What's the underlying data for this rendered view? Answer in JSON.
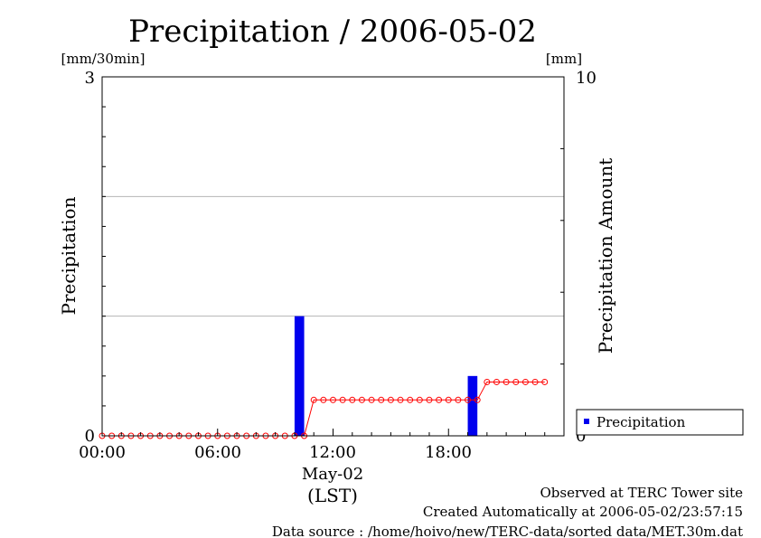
{
  "chart_data": {
    "type": "bar",
    "title": "Precipitation / 2006-05-02",
    "ylabel": "Precipitation",
    "y2label": "Precipitation Amount",
    "yunit": "[mm/30min]",
    "y2unit": "[mm]",
    "ylim": [
      0,
      3
    ],
    "y2lim": [
      0,
      10
    ],
    "y_ticks": [
      "0",
      "3"
    ],
    "y2_ticks": [
      "0",
      "10"
    ],
    "x_ticks": [
      "00:00",
      "06:00",
      "12:00",
      "18:00"
    ],
    "x_date_label": "May-02",
    "x_axis_label": "(LST)",
    "grid": true,
    "legend": {
      "position": "right",
      "entries": [
        "Precipitation"
      ]
    },
    "bar_color": "#0000ee",
    "line_color": "#ff0000",
    "bars": [
      {
        "x": "10:30",
        "value": 1.0
      },
      {
        "x": "19:30",
        "value": 0.5
      }
    ],
    "cumulative": {
      "name": "Precipitation Amount",
      "x": [
        "00:00",
        "00:30",
        "01:00",
        "01:30",
        "02:00",
        "02:30",
        "03:00",
        "03:30",
        "04:00",
        "04:30",
        "05:00",
        "05:30",
        "06:00",
        "06:30",
        "07:00",
        "07:30",
        "08:00",
        "08:30",
        "09:00",
        "09:30",
        "10:00",
        "10:30",
        "11:00",
        "11:30",
        "12:00",
        "12:30",
        "13:00",
        "13:30",
        "14:00",
        "14:30",
        "15:00",
        "15:30",
        "16:00",
        "16:30",
        "17:00",
        "17:30",
        "18:00",
        "18:30",
        "19:00",
        "19:30",
        "20:00",
        "20:30",
        "21:00",
        "21:30",
        "22:00",
        "22:30",
        "23:00"
      ],
      "values": [
        0,
        0,
        0,
        0,
        0,
        0,
        0,
        0,
        0,
        0,
        0,
        0,
        0,
        0,
        0,
        0,
        0,
        0,
        0,
        0,
        0,
        0,
        1,
        1,
        1,
        1,
        1,
        1,
        1,
        1,
        1,
        1,
        1,
        1,
        1,
        1,
        1,
        1,
        1,
        1,
        1.5,
        1.5,
        1.5,
        1.5,
        1.5,
        1.5,
        1.5
      ]
    }
  },
  "footer": {
    "observed": "Observed at TERC Tower site",
    "created": "Created Automatically at 2006-05-02/23:57:15",
    "source": "Data source : /home/hoivo/new/TERC-data/sorted  data/MET.30m.dat"
  }
}
